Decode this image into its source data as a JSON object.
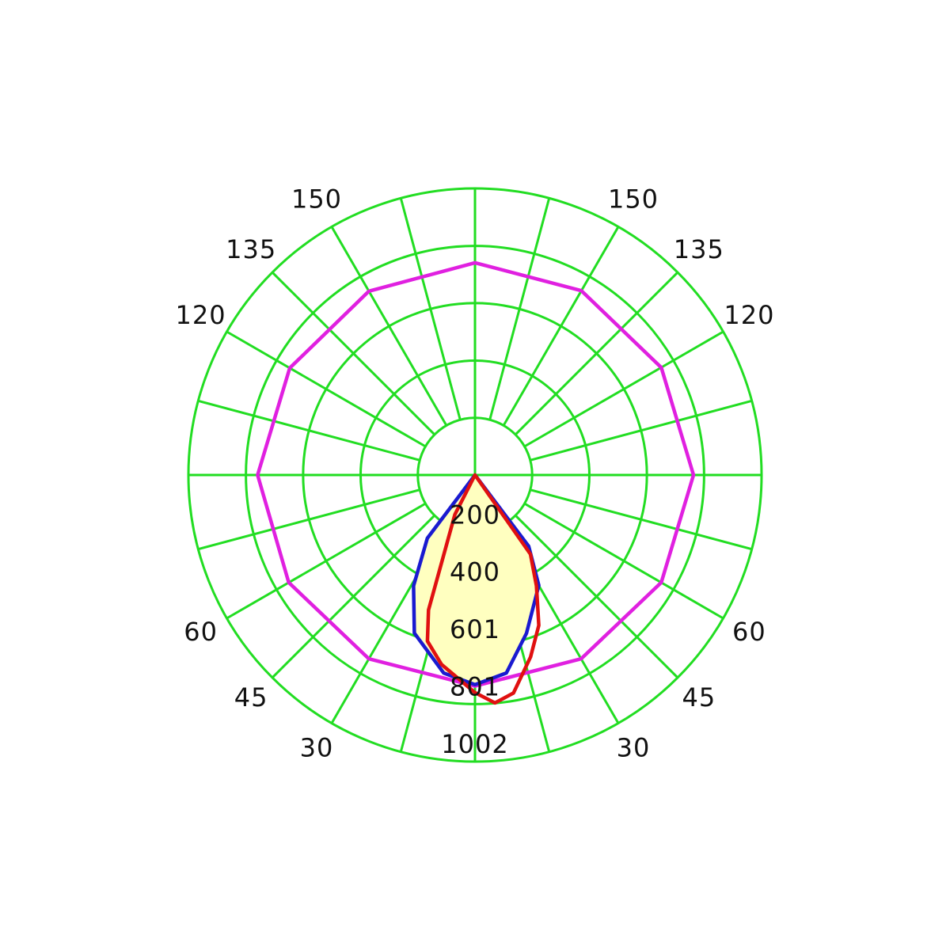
{
  "chart_data": {
    "type": "polar",
    "rlim": [
      0,
      1002
    ],
    "rticks": [
      200,
      400,
      601,
      801,
      1002
    ],
    "thetaticks": [
      30,
      45,
      60,
      120,
      135,
      150
    ],
    "mirror": true,
    "grid": true,
    "grid_color": "#22dd22",
    "series": [
      {
        "color": "#e020e0",
        "theta": [
          -180,
          -150,
          -120,
          -90,
          -60,
          -30,
          0,
          30,
          60,
          90,
          120,
          150,
          180
        ],
        "values": [
          742,
          742,
          748,
          760,
          752,
          742,
          738,
          742,
          752,
          764,
          752,
          744,
          742
        ]
      },
      {
        "color": "#1a1ad0",
        "fill": "#ffffc0",
        "theta": [
          -90,
          -45,
          -37,
          -29,
          -21,
          -9,
          0,
          9,
          18,
          30,
          37,
          45,
          90
        ],
        "values": [
          0,
          0,
          277,
          443,
          592,
          701,
          733,
          701,
          582,
          446,
          312,
          0,
          0
        ]
      },
      {
        "color": "#e01010",
        "theta": [
          -90,
          -27,
          -19,
          -16,
          -10,
          0,
          5,
          10,
          17,
          23,
          29,
          35,
          90
        ],
        "values": [
          0,
          155,
          499,
          604,
          673,
          761,
          800,
          774,
          665,
          571,
          443,
          338,
          0
        ]
      }
    ]
  }
}
